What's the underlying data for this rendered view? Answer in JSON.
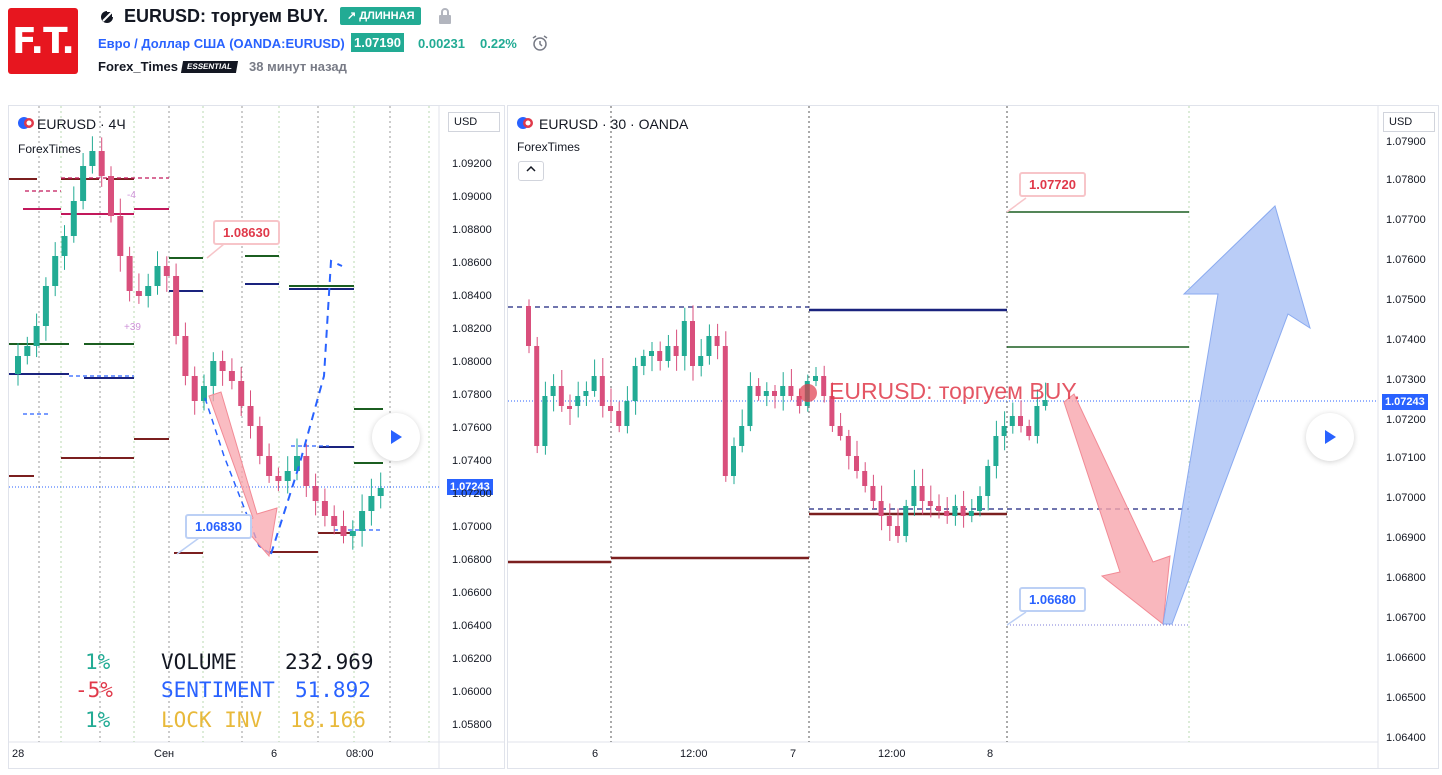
{
  "header": {
    "logo_text": "F.T.",
    "title": "EURUSD: торгуем BUY.",
    "direction_badge": "↗ ДЛИННАЯ",
    "symbol_name": "Евро / Доллар США",
    "symbol_code": "(OANDA:EURUSD)",
    "price": "1.07190",
    "change": "0.00231",
    "change_pct": "0.22%",
    "author": "Forex_Times",
    "author_badge": "ESSENTIAL",
    "published": "38 минут назад"
  },
  "left_chart": {
    "title": "EURUSD · 4Ч",
    "indicator": "ForexTimes",
    "currency": "USD",
    "price_ticks": [
      "1.09200",
      "1.09000",
      "1.08800",
      "1.08600",
      "1.08400",
      "1.08200",
      "1.08000",
      "1.07800",
      "1.07600",
      "1.07400",
      "1.07200",
      "1.07000",
      "1.06800",
      "1.06600",
      "1.06400",
      "1.06200",
      "1.06000",
      "1.05800"
    ],
    "current_price": "1.07243",
    "time_ticks": [
      "28",
      "Сен",
      "6",
      "08:00"
    ],
    "callout_top": "1.08630",
    "callout_bottom": "1.06830",
    "marker_plus": "+39",
    "marker_minus": "-4",
    "stats": [
      {
        "pct": "1%",
        "label": "VOLUME",
        "value": "232.969"
      },
      {
        "pct": "-5%",
        "label": "SENTIMENT",
        "value": "51.892"
      },
      {
        "pct": "1%",
        "label": "LOCK INV",
        "value": "18.166"
      }
    ]
  },
  "right_chart": {
    "title": "EURUSD · 30 · OANDA",
    "indicator": "ForexTimes",
    "currency": "USD",
    "price_ticks": [
      "1.07900",
      "1.07800",
      "1.07700",
      "1.07600",
      "1.07500",
      "1.07400",
      "1.07300",
      "1.07200",
      "1.07100",
      "1.07000",
      "1.06900",
      "1.06800",
      "1.06700",
      "1.06600",
      "1.06500",
      "1.06400"
    ],
    "current_price": "1.07243",
    "time_ticks": [
      "6",
      "12:00",
      "7",
      "12:00",
      "8"
    ],
    "callout_top": "1.07720",
    "callout_bottom": "1.06680",
    "watermark": "EURUSD: торгуем BUY."
  },
  "colors": {
    "up": "#22ab94",
    "down": "#e0394a",
    "accent": "#2962ff",
    "candle": "#d94f7c"
  },
  "icons": [
    "logo-icon",
    "lock-icon",
    "alarm-clock-icon",
    "eu-us-flag-icon",
    "chevron-up-icon",
    "play-icon"
  ]
}
